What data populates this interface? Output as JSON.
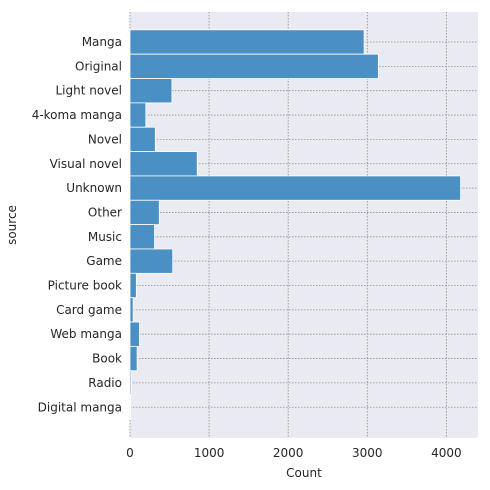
{
  "chart_data": {
    "type": "bar",
    "orientation": "horizontal",
    "xlabel": "Count",
    "ylabel": "source",
    "xlim": [
      0,
      4400
    ],
    "xticks": [
      0,
      1000,
      2000,
      3000,
      4000
    ],
    "grid": true,
    "colors": {
      "bar": "#4a90c4",
      "bar_edge": "#ffffff",
      "plot_background": "#eaeaf2",
      "grid": "#8c8c8c"
    },
    "categories": [
      "Manga",
      "Original",
      "Light novel",
      "4-koma manga",
      "Novel",
      "Visual novel",
      "Unknown",
      "Other",
      "Music",
      "Game",
      "Picture book",
      "Card game",
      "Web manga",
      "Book",
      "Radio",
      "Digital manga"
    ],
    "values": [
      2960,
      3140,
      530,
      200,
      320,
      850,
      4180,
      370,
      310,
      540,
      80,
      40,
      120,
      90,
      15,
      8
    ]
  }
}
